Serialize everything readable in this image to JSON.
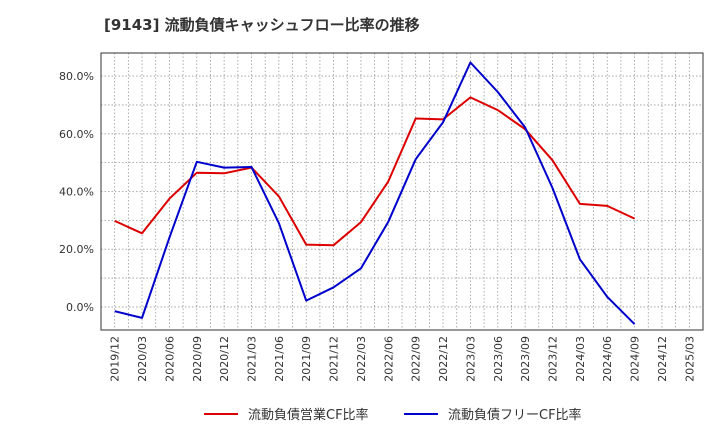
{
  "title": "[9143]  流動負債キャッシュフロー比率の推移",
  "chart_data": {
    "type": "line",
    "title": "[9143]  流動負債キャッシュフロー比率の推移",
    "xlabel": "",
    "ylabel": "",
    "x_ticks": [
      "2019/12",
      "2020/03",
      "2020/06",
      "2020/09",
      "2020/12",
      "2021/03",
      "2021/06",
      "2021/09",
      "2021/12",
      "2022/03",
      "2022/06",
      "2022/09",
      "2022/12",
      "2023/03",
      "2023/06",
      "2023/09",
      "2023/12",
      "2024/03",
      "2024/06",
      "2024/09",
      "2024/12",
      "2025/03"
    ],
    "y_ticks": [
      "0.0%",
      "20.0%",
      "40.0%",
      "60.0%",
      "80.0%"
    ],
    "ylim": [
      -8,
      88
    ],
    "grid": true,
    "legend_position": "bottom",
    "series": [
      {
        "name": "流動負債営業CF比率",
        "color": "#dd0000",
        "x": [
          "2019/12",
          "2020/03",
          "2020/06",
          "2020/09",
          "2020/12",
          "2021/03",
          "2021/06",
          "2021/09",
          "2021/12",
          "2022/03",
          "2022/06",
          "2022/09",
          "2022/12",
          "2023/03",
          "2023/06",
          "2023/09",
          "2023/12",
          "2024/03",
          "2024/06",
          "2024/09"
        ],
        "values": [
          29.8,
          25.5,
          37.5,
          46.5,
          46.3,
          48.3,
          38.3,
          21.6,
          21.4,
          29.4,
          43.5,
          65.3,
          65.0,
          72.6,
          68.2,
          61.6,
          50.8,
          35.7,
          35.0,
          30.6
        ]
      },
      {
        "name": "流動負債フリーCF比率",
        "color": "#0000cc",
        "x": [
          "2019/12",
          "2020/03",
          "2020/06",
          "2020/09",
          "2020/12",
          "2021/03",
          "2021/06",
          "2021/09",
          "2021/12",
          "2022/03",
          "2022/06",
          "2022/09",
          "2022/12",
          "2023/03",
          "2023/06",
          "2023/09",
          "2023/12",
          "2024/03",
          "2024/06",
          "2024/09"
        ],
        "values": [
          -1.5,
          -3.8,
          24.0,
          50.3,
          48.3,
          48.5,
          29.0,
          2.2,
          6.8,
          13.4,
          29.5,
          51.2,
          64.0,
          84.7,
          74.5,
          62.2,
          41.2,
          16.5,
          3.5,
          -6.0
        ]
      }
    ]
  }
}
